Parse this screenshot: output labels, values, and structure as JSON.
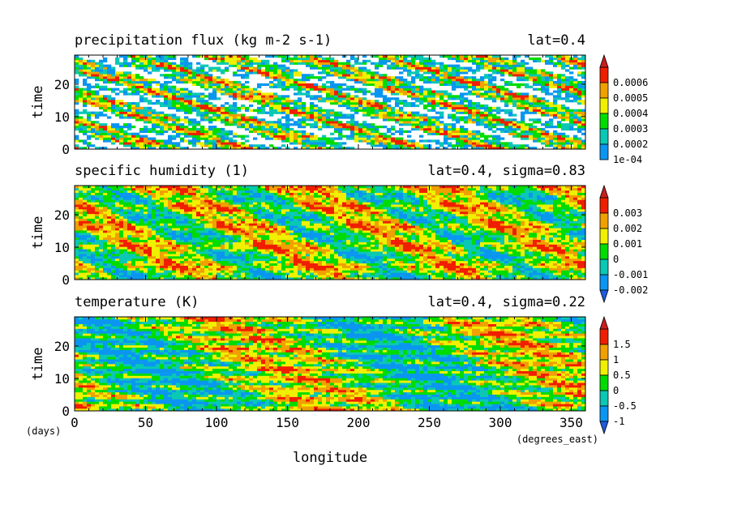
{
  "palette": [
    "#0a96f0",
    "#0ac8b4",
    "#00dc00",
    "#f0f000",
    "#f0a000",
    "#f01e00"
  ],
  "x_axis": {
    "label": "longitude",
    "units": "(degrees_east)",
    "range": [
      0,
      360
    ],
    "ticks": [
      "0",
      "50",
      "100",
      "150",
      "200",
      "250",
      "300",
      "350"
    ],
    "tick_values": [
      0,
      50,
      100,
      150,
      200,
      250,
      300,
      350
    ]
  },
  "y_units": "(days)",
  "chart_data": [
    {
      "type": "heatmap",
      "title": "precipitation flux (kg m-2 s-1)",
      "subtitle": "lat=0.4",
      "ylabel": "time",
      "xlim": [
        0,
        360
      ],
      "ylim": [
        0,
        29
      ],
      "yticks": [
        "0",
        "10",
        "20"
      ],
      "ytick_values": [
        0,
        10,
        20
      ],
      "colorbar": {
        "labels": [
          "0.0006",
          "0.0005",
          "0.0004",
          "0.0003",
          "0.0002",
          "1e-04"
        ],
        "arrow_top": true,
        "arrow_bottom": false
      },
      "field": {
        "kind": "precip",
        "tilt": -0.55,
        "seed": 11
      }
    },
    {
      "type": "heatmap",
      "title": "specific humidity (1)",
      "subtitle": "lat=0.4, sigma=0.83",
      "ylabel": "time",
      "xlim": [
        0,
        360
      ],
      "ylim": [
        0,
        29
      ],
      "yticks": [
        "0",
        "10",
        "20"
      ],
      "ytick_values": [
        0,
        10,
        20
      ],
      "colorbar": {
        "labels": [
          "0.003",
          "0.002",
          "0.001",
          "0",
          "-0.001",
          "-0.002"
        ],
        "arrow_top": true,
        "arrow_bottom": true
      },
      "field": {
        "kind": "humidity",
        "tilt": -0.35,
        "seed": 23
      }
    },
    {
      "type": "heatmap",
      "title": "temperature (K)",
      "subtitle": "lat=0.4, sigma=0.22",
      "ylabel": "time",
      "xlim": [
        0,
        360
      ],
      "ylim": [
        0,
        29
      ],
      "yticks": [
        "0",
        "10",
        "20"
      ],
      "ytick_values": [
        0,
        10,
        20
      ],
      "colorbar": {
        "labels": [
          "1.5",
          "1",
          "0.5",
          "0",
          "-0.5",
          "-1"
        ],
        "arrow_top": true,
        "arrow_bottom": true
      },
      "field": {
        "kind": "temperature",
        "tilt": -0.05,
        "seed": 37
      }
    }
  ]
}
